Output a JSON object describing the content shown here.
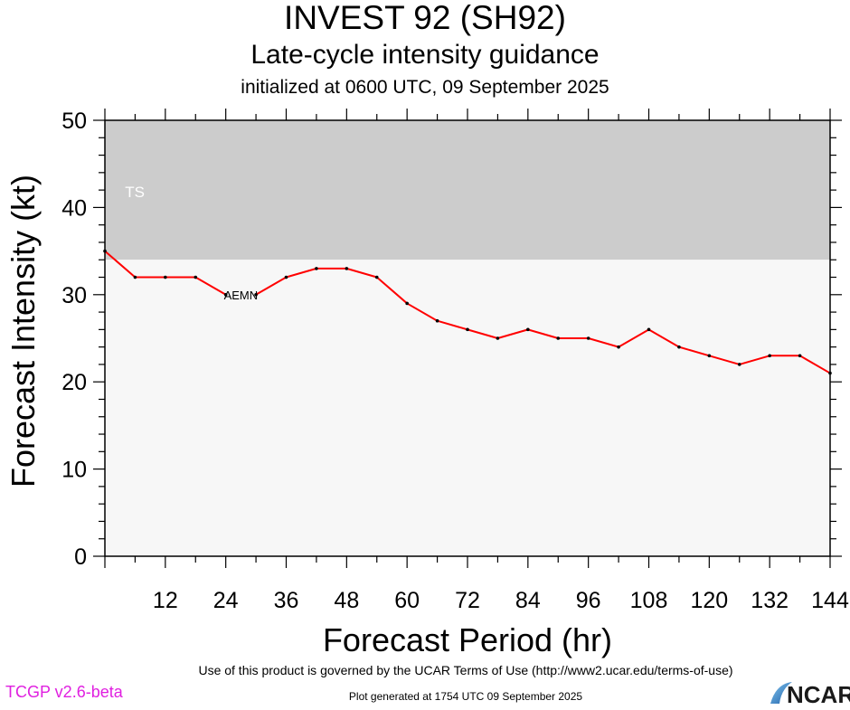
{
  "header": {
    "title": "INVEST 92 (SH92)",
    "subtitle": "Late-cycle intensity guidance",
    "init": "initialized at 0600 UTC, 09 September 2025"
  },
  "footer": {
    "terms": "Use of this product is governed by the UCAR Terms of Use (http://www2.ucar.edu/terms-of-use)",
    "generated": "Plot generated at 1754 UTC   09 September 2025",
    "version": "TCGP v2.6-beta",
    "logo_text": "NCAR",
    "version_color": "#e020e0"
  },
  "chart_data": {
    "type": "line",
    "xlabel": "Forecast Period (hr)",
    "ylabel": "Forecast Intensity (kt)",
    "xlim": [
      0,
      144
    ],
    "ylim": [
      0,
      50
    ],
    "xticks": [
      12,
      24,
      36,
      48,
      60,
      72,
      84,
      96,
      108,
      120,
      132,
      144
    ],
    "yticks": [
      0,
      10,
      20,
      30,
      40,
      50
    ],
    "bands": [
      {
        "label": "TS",
        "from": 34,
        "to": 50,
        "color": "#cccccc"
      },
      {
        "label": "",
        "from": 0,
        "to": 34,
        "color": "#f7f7f7"
      }
    ],
    "series": [
      {
        "name": "AEMN",
        "color": "#ff0000",
        "x": [
          0,
          6,
          12,
          18,
          24,
          30,
          36,
          42,
          48,
          54,
          60,
          66,
          72,
          78,
          84,
          90,
          96,
          102,
          108,
          114,
          120,
          126,
          132,
          138,
          144
        ],
        "y": [
          35,
          32,
          32,
          32,
          30,
          30,
          32,
          33,
          33,
          32,
          29,
          27,
          26,
          25,
          26,
          25,
          25,
          24,
          26,
          24,
          23,
          22,
          23,
          23,
          21
        ],
        "label_x": [
          27,
          60,
          96,
          132
        ]
      }
    ],
    "grid": false,
    "legend": "none"
  }
}
